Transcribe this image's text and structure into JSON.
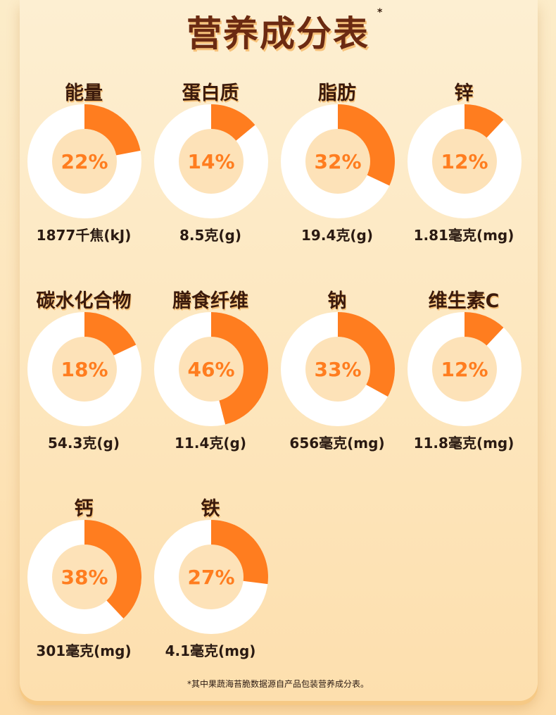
{
  "title": "营养成分表",
  "title_marker": "*",
  "colors": {
    "accent": "#ff7d1f",
    "ring_bg": "#ffffff",
    "inner_bg": "#fde2b8",
    "percent_text": "#ff7d1f",
    "title": "#6b2a12"
  },
  "chart_data": {
    "type": "pie",
    "style": "donut",
    "items": [
      {
        "name": "能量",
        "percent": 22,
        "percent_label": "22%",
        "amount": "1877千焦(kJ)"
      },
      {
        "name": "蛋白质",
        "percent": 14,
        "percent_label": "14%",
        "amount": "8.5克(g)"
      },
      {
        "name": "脂肪",
        "percent": 32,
        "percent_label": "32%",
        "amount": "19.4克(g)"
      },
      {
        "name": "锌",
        "percent": 12,
        "percent_label": "12%",
        "amount": "1.81毫克(mg)"
      },
      {
        "name": "碳水化合物",
        "percent": 18,
        "percent_label": "18%",
        "amount": "54.3克(g)"
      },
      {
        "name": "膳食纤维",
        "percent": 46,
        "percent_label": "46%",
        "amount": "11.4克(g)"
      },
      {
        "name": "钠",
        "percent": 33,
        "percent_label": "33%",
        "amount": "656毫克(mg)"
      },
      {
        "name": "维生素C",
        "percent": 12,
        "percent_label": "12%",
        "amount": "11.8毫克(mg)"
      },
      {
        "name": "钙",
        "percent": 38,
        "percent_label": "38%",
        "amount": "301毫克(mg)"
      },
      {
        "name": "铁",
        "percent": 27,
        "percent_label": "27%",
        "amount": "4.1毫克(mg)"
      }
    ]
  },
  "footnote": "*其中果蔬海苔脆数据源自产品包装营养成分表。"
}
